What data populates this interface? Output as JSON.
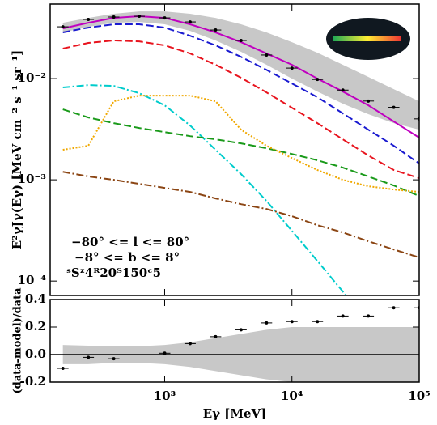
{
  "chart_data": [
    {
      "type": "line",
      "y_label": "E²γJγ(Eγ) [MeV cm⁻² s⁻¹ sr⁻¹]",
      "annotations": [
        "−80° <= l <= 80°",
        "−8° <= b <= 8°",
        "ˢSᶻ4ᴿ20ᵀ150ᶜ5"
      ],
      "x_scale": "log",
      "y_scale": "log",
      "xlim": [
        126,
        100000
      ],
      "ylim": [
        7.2e-05,
        0.0545
      ],
      "yticks": [
        {
          "value": 0.01,
          "label": "10⁻²"
        },
        {
          "value": 0.001,
          "label": "10⁻³"
        },
        {
          "value": 0.0001,
          "label": "10⁻⁴"
        }
      ],
      "x": [
        158.5,
        251.2,
        398.1,
        631,
        1000,
        1585,
        2512,
        3981,
        6310,
        10000,
        15850,
        25120,
        39810,
        63100,
        100000
      ],
      "band": {
        "color": "#c8c8c8",
        "upper": [
          0.0356,
          0.0398,
          0.0437,
          0.0461,
          0.0461,
          0.0437,
          0.0398,
          0.0344,
          0.0286,
          0.0229,
          0.018,
          0.0137,
          0.0104,
          0.00787,
          0.00597
        ],
        "lower": [
          0.0286,
          0.0325,
          0.0356,
          0.0363,
          0.0344,
          0.0296,
          0.0238,
          0.0184,
          0.0137,
          0.01,
          0.00745,
          0.00565,
          0.00445,
          0.00363,
          0.00313
        ]
      },
      "series": [
        {
          "color": "#00cccc",
          "style": "dashdot",
          "values": [
            0.00817,
            0.00863,
            0.00847,
            0.00718,
            0.00545,
            0.00344,
            0.00198,
            0.00114,
            0.000619,
            0.000313,
            0.000158,
            7.87e-05,
            3.91e-05,
            null,
            null
          ]
        },
        {
          "color": "#8b4513",
          "style": "dashdot",
          "values": [
            0.0012,
            0.00108,
            0.001,
            0.000912,
            0.000832,
            0.000759,
            0.000655,
            0.000575,
            0.000515,
            0.000437,
            0.000356,
            0.000302,
            0.000247,
            0.000205,
            0.000171
          ]
        },
        {
          "color": "#1a9a1a",
          "style": "dashed",
          "values": [
            0.00497,
            0.00413,
            0.00363,
            0.00325,
            0.00296,
            0.0027,
            0.00251,
            0.00229,
            0.00205,
            0.0018,
            0.00156,
            0.00132,
            0.00108,
            0.000879,
            0.000692
          ]
        },
        {
          "color": "#f0a800",
          "style": "dotted",
          "values": [
            0.00198,
            0.00217,
            0.00597,
            0.00679,
            0.00679,
            0.00679,
            0.00597,
            0.00313,
            0.00217,
            0.00164,
            0.00125,
            0.001,
            0.000863,
            0.000802,
            0.000759
          ]
        },
        {
          "color": "#e8141e",
          "style": "dashed",
          "values": [
            0.0198,
            0.0225,
            0.0238,
            0.0233,
            0.0213,
            0.0177,
            0.0137,
            0.0102,
            0.00731,
            0.00515,
            0.00363,
            0.00251,
            0.00174,
            0.00125,
            0.00104
          ]
        },
        {
          "color": "#1a1ad0",
          "style": "dashed",
          "values": [
            0.0286,
            0.0319,
            0.0344,
            0.0344,
            0.0319,
            0.0265,
            0.0213,
            0.0164,
            0.0122,
            0.00895,
            0.00655,
            0.00453,
            0.00313,
            0.00217,
            0.00145
          ]
        },
        {
          "color": "#c000c0",
          "style": "solid",
          "values": [
            0.0313,
            0.0356,
            0.0398,
            0.0413,
            0.0398,
            0.0344,
            0.0286,
            0.0229,
            0.0177,
            0.0137,
            0.01,
            0.00745,
            0.00545,
            0.00377,
            0.00261
          ]
        }
      ],
      "points": {
        "color": "#000000",
        "values": [
          0.0325,
          0.0384,
          0.0406,
          0.0413,
          0.0398,
          0.0363,
          0.0302,
          0.0238,
          0.0171,
          0.0127,
          0.0098,
          0.0077,
          0.006,
          0.0052,
          0.004
        ]
      }
    },
    {
      "type": "line",
      "x_label": "Eγ [MeV]",
      "y_label": "(data-model)/data",
      "x_scale": "log",
      "xlim": [
        126,
        100000
      ],
      "ylim": [
        -0.2,
        0.4
      ],
      "xticks": [
        {
          "value": 1000,
          "label": "10³"
        },
        {
          "value": 10000,
          "label": "10⁴"
        },
        {
          "value": 100000,
          "label": "10⁵"
        }
      ],
      "yticks": [
        -0.2,
        {
          "value": 0,
          "label": "0.0"
        },
        0.2,
        0.4
      ],
      "x": [
        158.5,
        251.2,
        398.1,
        631,
        1000,
        1585,
        2512,
        3981,
        6310,
        10000,
        15850,
        25120,
        39810,
        63100,
        100000
      ],
      "band": {
        "color": "#c8c8c8",
        "upper": [
          0.07,
          0.065,
          0.06,
          0.06,
          0.07,
          0.09,
          0.12,
          0.15,
          0.18,
          0.2,
          0.2,
          0.2,
          0.2,
          0.2,
          0.2
        ],
        "lower": [
          -0.07,
          -0.07,
          -0.06,
          -0.06,
          -0.07,
          -0.09,
          -0.12,
          -0.15,
          -0.18,
          -0.2,
          -0.2,
          -0.2,
          -0.2,
          -0.2,
          -0.2
        ]
      },
      "points": {
        "color": "#000000",
        "values": [
          -0.1,
          -0.02,
          -0.03,
          null,
          0.01,
          0.08,
          0.13,
          0.18,
          0.23,
          0.24,
          0.24,
          0.28,
          0.28,
          0.34,
          0.34
        ]
      }
    }
  ]
}
